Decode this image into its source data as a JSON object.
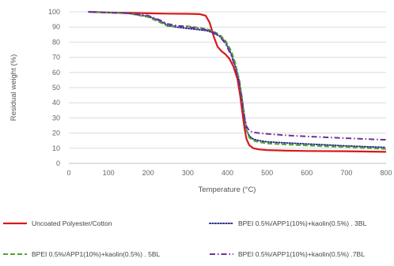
{
  "chart_data": {
    "type": "line",
    "title": "",
    "xlabel": "Temperature (°C)",
    "ylabel": "Residual weight (%)",
    "xlim": [
      0,
      800
    ],
    "ylim": [
      0,
      100
    ],
    "x_ticks": [
      0,
      100,
      200,
      300,
      400,
      500,
      600,
      700,
      800
    ],
    "y_ticks": [
      0,
      10,
      20,
      30,
      40,
      50,
      60,
      70,
      80,
      90,
      100
    ],
    "grid": "horizontal",
    "legend_position": "bottom",
    "series": [
      {
        "name": "Uncoated Polyester/Cotton",
        "color": "#d7191c",
        "dash": "solid",
        "points": [
          [
            50,
            100
          ],
          [
            100,
            99.6
          ],
          [
            150,
            99.3
          ],
          [
            200,
            99
          ],
          [
            250,
            98.8
          ],
          [
            300,
            98.7
          ],
          [
            330,
            98.5
          ],
          [
            345,
            97.5
          ],
          [
            355,
            93
          ],
          [
            365,
            84
          ],
          [
            375,
            77
          ],
          [
            385,
            74
          ],
          [
            395,
            72
          ],
          [
            405,
            69
          ],
          [
            415,
            64
          ],
          [
            425,
            56
          ],
          [
            432,
            45
          ],
          [
            438,
            33
          ],
          [
            443,
            23
          ],
          [
            448,
            16
          ],
          [
            455,
            12
          ],
          [
            465,
            10
          ],
          [
            480,
            9.2
          ],
          [
            500,
            8.8
          ],
          [
            550,
            8.4
          ],
          [
            600,
            8.2
          ],
          [
            700,
            8
          ],
          [
            800,
            7.6
          ]
        ]
      },
      {
        "name": "BPEI 0.5%/APP1(10%)+kaolin(0.5%) . 3BL",
        "color": "#2a2e8c",
        "dash": "dotted",
        "points": [
          [
            50,
            100
          ],
          [
            100,
            99.5
          ],
          [
            150,
            99
          ],
          [
            200,
            97
          ],
          [
            230,
            94
          ],
          [
            250,
            91
          ],
          [
            270,
            90
          ],
          [
            300,
            89
          ],
          [
            330,
            88.2
          ],
          [
            350,
            87.5
          ],
          [
            365,
            86
          ],
          [
            380,
            84
          ],
          [
            395,
            80
          ],
          [
            410,
            72
          ],
          [
            420,
            64
          ],
          [
            430,
            54
          ],
          [
            437,
            42
          ],
          [
            443,
            30
          ],
          [
            448,
            22
          ],
          [
            455,
            18
          ],
          [
            465,
            16
          ],
          [
            480,
            15
          ],
          [
            500,
            14.2
          ],
          [
            550,
            13.5
          ],
          [
            600,
            12.8
          ],
          [
            650,
            12.2
          ],
          [
            700,
            11.5
          ],
          [
            800,
            10.5
          ]
        ]
      },
      {
        "name": "BPEI 0.5%/APP1(10%)+kaolin(0.5%) . 5BL",
        "color": "#4ea72e",
        "dash": "dashed",
        "points": [
          [
            50,
            100
          ],
          [
            100,
            99.5
          ],
          [
            150,
            99
          ],
          [
            200,
            96.5
          ],
          [
            230,
            93
          ],
          [
            250,
            90.5
          ],
          [
            270,
            90.8
          ],
          [
            300,
            90.5
          ],
          [
            330,
            89.5
          ],
          [
            350,
            88.5
          ],
          [
            365,
            87
          ],
          [
            380,
            85
          ],
          [
            395,
            81
          ],
          [
            410,
            74
          ],
          [
            420,
            66
          ],
          [
            430,
            55
          ],
          [
            437,
            43
          ],
          [
            443,
            31
          ],
          [
            448,
            22
          ],
          [
            455,
            17
          ],
          [
            465,
            15
          ],
          [
            480,
            14
          ],
          [
            500,
            13.2
          ],
          [
            550,
            12.4
          ],
          [
            600,
            11.8
          ],
          [
            650,
            11.2
          ],
          [
            700,
            10.8
          ],
          [
            800,
            9.5
          ]
        ]
      },
      {
        "name": "BPEI 0.5%/APP1(10%)+kaolin(0.5%) .7BL",
        "color": "#7030a0",
        "dash": "dashdot",
        "points": [
          [
            50,
            100
          ],
          [
            100,
            99.5
          ],
          [
            150,
            99
          ],
          [
            200,
            97.5
          ],
          [
            230,
            94.5
          ],
          [
            250,
            92
          ],
          [
            270,
            91
          ],
          [
            300,
            90
          ],
          [
            330,
            89
          ],
          [
            350,
            88
          ],
          [
            365,
            86.5
          ],
          [
            380,
            84
          ],
          [
            395,
            79
          ],
          [
            410,
            71
          ],
          [
            420,
            63
          ],
          [
            430,
            53
          ],
          [
            437,
            41
          ],
          [
            443,
            30
          ],
          [
            448,
            24.5
          ],
          [
            455,
            21.5
          ],
          [
            465,
            20.5
          ],
          [
            480,
            20
          ],
          [
            500,
            19.5
          ],
          [
            550,
            18.5
          ],
          [
            600,
            17.8
          ],
          [
            650,
            17.2
          ],
          [
            700,
            16.6
          ],
          [
            800,
            15.5
          ]
        ]
      }
    ]
  }
}
